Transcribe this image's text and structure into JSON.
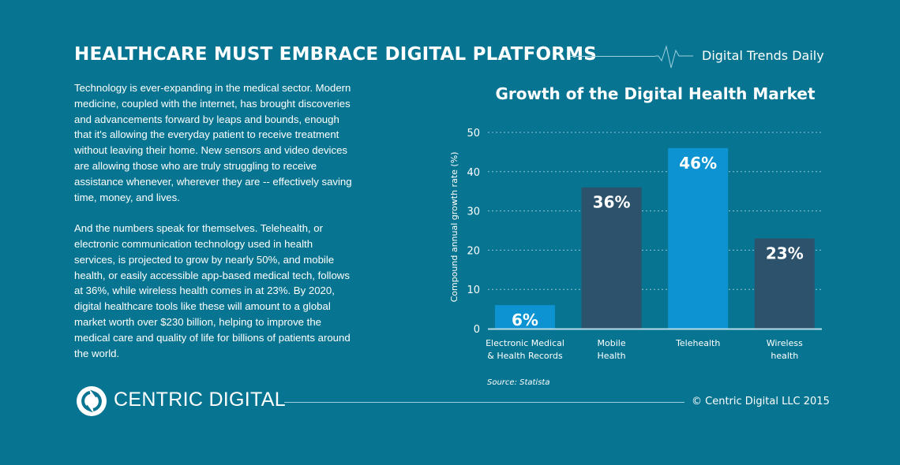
{
  "header": {
    "title": "HEALTHCARE MUST EMBRACE DIGITAL PLATFORMS",
    "brand": "Digital Trends Daily",
    "icon": "heartbeat-line-icon"
  },
  "article": {
    "paragraphs": [
      "Technology is ever-expanding in the medical sector. Modern medicine, coupled with the internet, has brought discoveries and advancements forward by leaps and bounds, enough that it's allowing the everyday patient to receive treatment without leaving their home. New sensors and video devices are allowing those who are truly struggling to receive assistance whenever, wherever they are -- effectively saving time, money, and lives.",
      "And the numbers speak for themselves. Telehealth, or electronic communication technology used in health services, is projected to grow by nearly 50%, and mobile health, or easily accessible app-based medical tech, follows at 36%, while wireless health comes in at 23%. By 2020, digital healthcare tools like these will amount to a global market worth over $230 billion, helping to improve the medical care and quality of life for billions of patients around the world."
    ]
  },
  "chart_data": {
    "type": "bar",
    "title": "Growth of the Digital Health Market",
    "ylabel": "Compound annual growth rate (%)",
    "xlabel": "",
    "ylim": [
      0,
      50
    ],
    "yticks": [
      "0",
      "10",
      "20",
      "30",
      "40",
      "50"
    ],
    "grid": true,
    "categories": [
      [
        "Electronic Medical",
        "& Health Records"
      ],
      [
        "Mobile",
        "Health"
      ],
      [
        "Telehealth"
      ],
      [
        "Wireless",
        "health"
      ]
    ],
    "values": [
      6,
      36,
      46,
      23
    ],
    "data_labels": [
      "6%",
      "36%",
      "46%",
      "23%"
    ],
    "bar_colors": [
      "#0e93d2",
      "#2c526c",
      "#0e93d2",
      "#2c526c"
    ],
    "source": "Source: Statista"
  },
  "footer": {
    "logo_text": "CENTRIC DIGITAL",
    "copyright": "© Centric Digital LLC 2015"
  },
  "colors": {
    "background": "#077592",
    "text": "#ffffff"
  }
}
